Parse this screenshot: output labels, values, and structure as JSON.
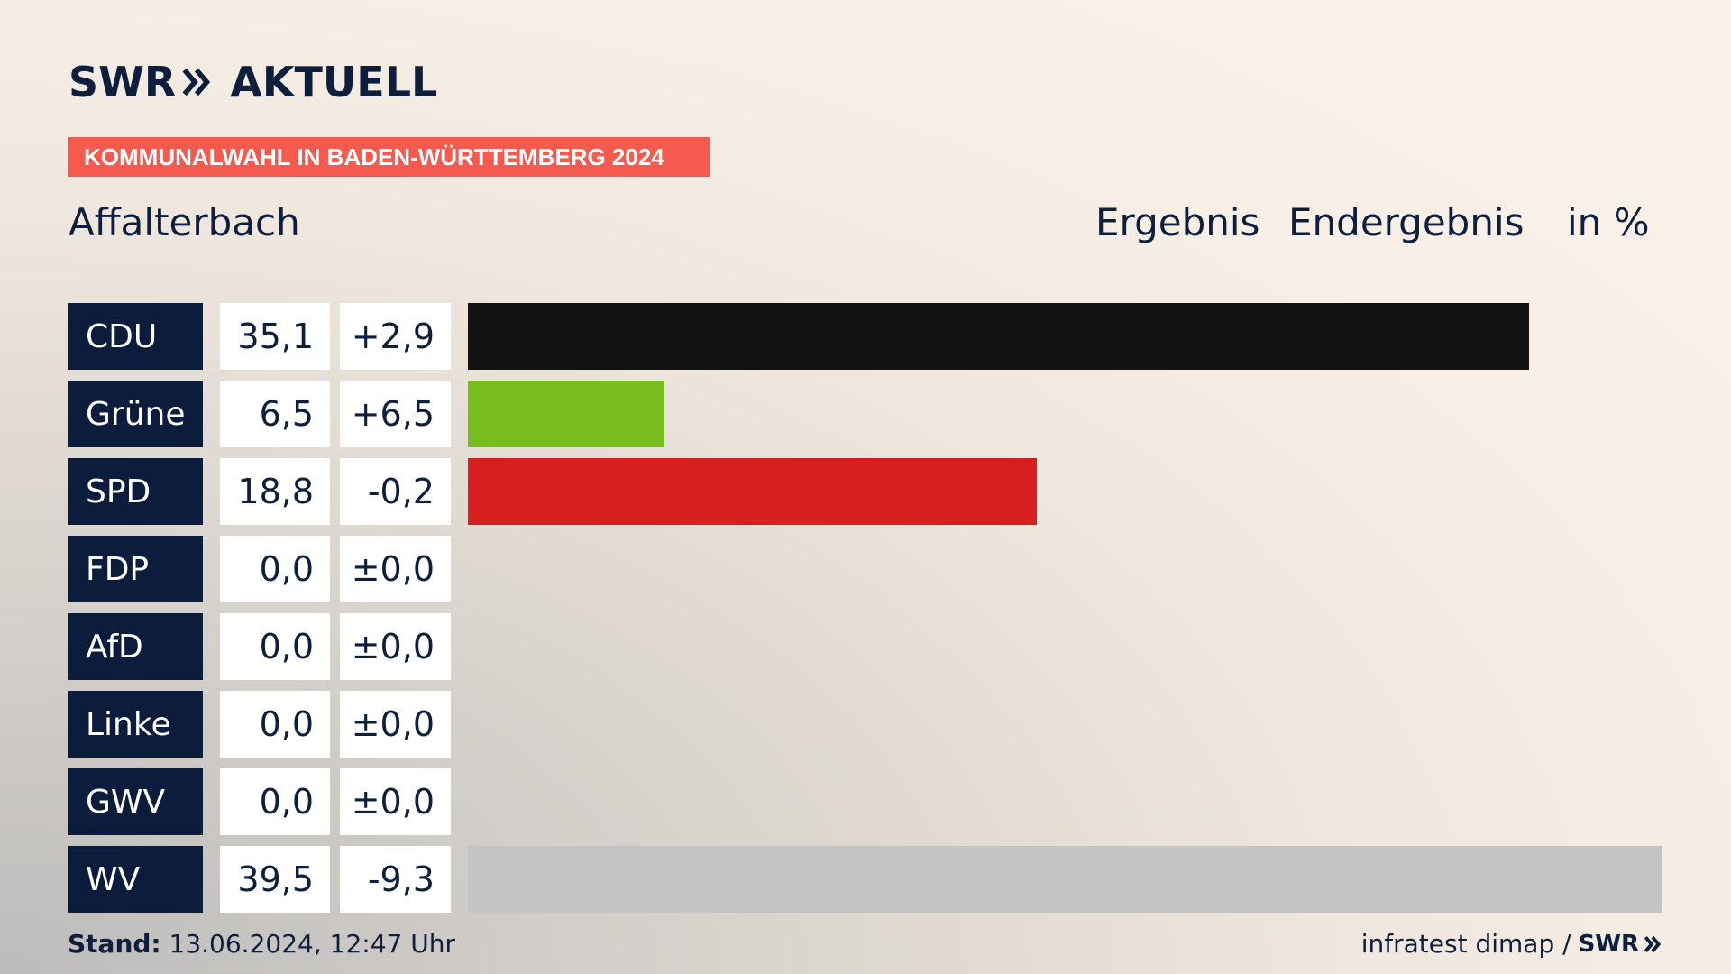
{
  "brand": {
    "logo_text": "SWR",
    "logo_suffix": "AKTUELL",
    "footer_logo": "SWR"
  },
  "banner": "KOMMUNALWAHL IN BADEN-WÜRTTEMBERG 2024",
  "location": "Affalterbach",
  "headers": {
    "ergebnis": "Ergebnis",
    "endergebnis": "Endergebnis",
    "unit": "in %"
  },
  "colors": {
    "CDU": "#131313",
    "Grüne": "#78bd1e",
    "SPD": "#d71f1f",
    "FDP": "#f5d400",
    "AfD": "#1ca6e3",
    "Linke": "#b9127a",
    "GWV": "#8c8c8c",
    "WV": "#c4c4c4",
    "party_bg": "#0c1c3c",
    "banner": "#f45a4d"
  },
  "chart_data": {
    "type": "bar",
    "orientation": "horizontal",
    "categories": [
      "CDU",
      "Grüne",
      "SPD",
      "FDP",
      "AfD",
      "Linke",
      "GWV",
      "WV"
    ],
    "values": [
      35.1,
      6.5,
      18.8,
      0.0,
      0.0,
      0.0,
      0.0,
      39.5
    ],
    "value_labels": [
      "35,1",
      "6,5",
      "18,8",
      "0,0",
      "0,0",
      "0,0",
      "0,0",
      "39,5"
    ],
    "diff_labels": [
      "+2,9",
      "+6,5",
      "-0,2",
      "±0,0",
      "±0,0",
      "±0,0",
      "±0,0",
      "-9,3"
    ],
    "xlim": [
      0,
      39.5
    ]
  },
  "footer": {
    "stand_label": "Stand:",
    "stand_value": " 13.06.2024, 12:47 Uhr",
    "source": "infratest dimap /"
  }
}
